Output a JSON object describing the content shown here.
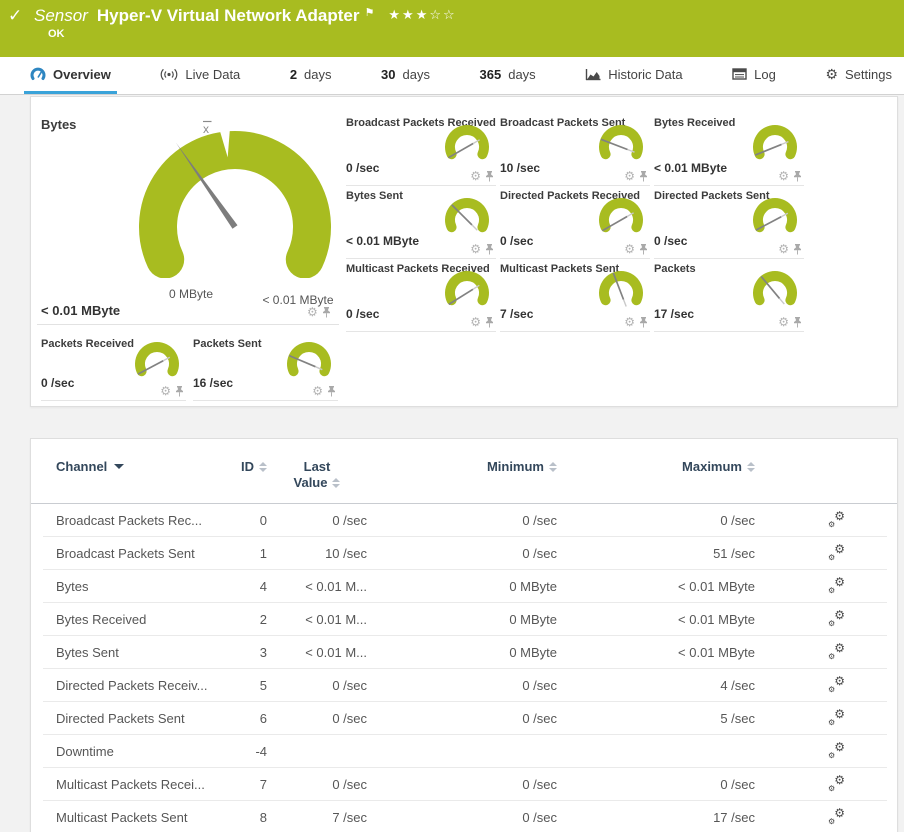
{
  "header": {
    "check_icon": "✓",
    "kind_label": "Sensor",
    "title": "Hyper-V Virtual Network Adapter",
    "flag_icon": "⚑",
    "rating": {
      "filled": 3,
      "total": 5
    },
    "status": "OK"
  },
  "tabs": [
    {
      "label": "Overview",
      "icon": "gauge-icon",
      "active": true
    },
    {
      "label": "Live Data",
      "icon": "live-icon",
      "active": false
    },
    {
      "num": "2",
      "label": "days",
      "active": false
    },
    {
      "num": "30",
      "label": "days",
      "active": false
    },
    {
      "num": "365",
      "label": "days",
      "active": false
    },
    {
      "label": "Historic Data",
      "icon": "historic-icon",
      "active": false
    },
    {
      "label": "Log",
      "icon": "log-icon",
      "active": false
    },
    {
      "label": "Settings",
      "icon": "gear-icon",
      "active": false
    }
  ],
  "overview": {
    "big_gauge": {
      "title": "Bytes",
      "value": "< 0.01 MByte",
      "scale_min": "0 MByte",
      "scale_max": "< 0.01 MByte",
      "mean_marker": "x",
      "needle_deg": -35
    },
    "small_gauges": [
      {
        "title": "Broadcast Packets Received",
        "value": "0 /sec",
        "needle_deg": -120
      },
      {
        "title": "Broadcast Packets Sent",
        "value": "10 /sec",
        "needle_deg": -69
      },
      {
        "title": "Bytes Received",
        "value": "< 0.01 MByte",
        "needle_deg": -112
      },
      {
        "title": "Bytes Sent",
        "value": "< 0.01 MByte",
        "needle_deg": -45
      },
      {
        "title": "Directed Packets Received",
        "value": "0 /sec",
        "needle_deg": -120
      },
      {
        "title": "Directed Packets Sent",
        "value": "0 /sec",
        "needle_deg": -118
      },
      {
        "title": "Multicast Packets Received",
        "value": "0 /sec",
        "needle_deg": -122
      },
      {
        "title": "Multicast Packets Sent",
        "value": "7 /sec",
        "needle_deg": -21
      },
      {
        "title": "Packets",
        "value": "17 /sec",
        "needle_deg": -40
      }
    ],
    "bottom_gauges": [
      {
        "title": "Packets Received",
        "value": "0 /sec",
        "needle_deg": -118
      },
      {
        "title": "Packets Sent",
        "value": "16 /sec",
        "needle_deg": -67
      }
    ]
  },
  "table": {
    "columns": {
      "channel": "Channel",
      "id": "ID",
      "last_line1": "Last",
      "last_line2": "Value",
      "minimum": "Minimum",
      "maximum": "Maximum"
    },
    "rows": [
      {
        "channel": "Broadcast Packets Rec...",
        "id": "0",
        "last": "0 /sec",
        "min": "0 /sec",
        "max": "0 /sec"
      },
      {
        "channel": "Broadcast Packets Sent",
        "id": "1",
        "last": "10 /sec",
        "min": "0 /sec",
        "max": "51 /sec"
      },
      {
        "channel": "Bytes",
        "id": "4",
        "last": "< 0.01 M...",
        "min": "0 MByte",
        "max": "< 0.01 MByte"
      },
      {
        "channel": "Bytes Received",
        "id": "2",
        "last": "< 0.01 M...",
        "min": "0 MByte",
        "max": "< 0.01 MByte"
      },
      {
        "channel": "Bytes Sent",
        "id": "3",
        "last": "< 0.01 M...",
        "min": "0 MByte",
        "max": "< 0.01 MByte"
      },
      {
        "channel": "Directed Packets Receiv...",
        "id": "5",
        "last": "0 /sec",
        "min": "0 /sec",
        "max": "4 /sec"
      },
      {
        "channel": "Directed Packets Sent",
        "id": "6",
        "last": "0 /sec",
        "min": "0 /sec",
        "max": "5 /sec"
      },
      {
        "channel": "Downtime",
        "id": "-4",
        "last": "",
        "min": "",
        "max": ""
      },
      {
        "channel": "Multicast Packets Recei...",
        "id": "7",
        "last": "0 /sec",
        "min": "0 /sec",
        "max": "0 /sec"
      },
      {
        "channel": "Multicast Packets Sent",
        "id": "8",
        "last": "7 /sec",
        "min": "0 /sec",
        "max": "17 /sec"
      }
    ]
  },
  "colors": {
    "status_green": "#a8bc20",
    "accent_blue": "#3aa3d9",
    "needle_gray": "#828282"
  }
}
